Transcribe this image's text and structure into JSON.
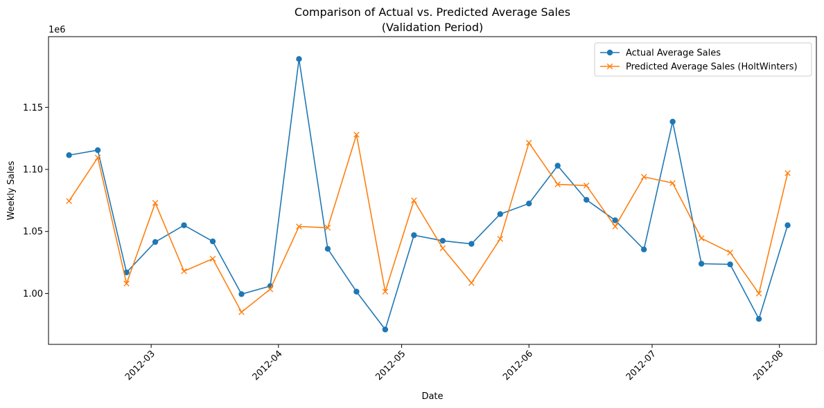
{
  "chart_data": {
    "type": "line",
    "title": "Comparison of Actual vs. Predicted Average Sales",
    "subtitle": "(Validation Period)",
    "xlabel": "Date",
    "ylabel": "Weekly Sales",
    "y_offset_label": "1e6",
    "x_tick_labels": [
      "2012-03",
      "2012-04",
      "2012-05",
      "2012-06",
      "2012-07",
      "2012-08"
    ],
    "x_ticks": [
      "2012-03-01",
      "2012-04-01",
      "2012-05-01",
      "2012-06-01",
      "2012-07-01",
      "2012-08-01"
    ],
    "y_tick_labels": [
      "1.00",
      "1.05",
      "1.10",
      "1.15"
    ],
    "y_ticks": [
      1.0,
      1.05,
      1.1,
      1.15
    ],
    "xlim": [
      "2012-02-05",
      "2012-08-10"
    ],
    "ylim": [
      0.959,
      1.207
    ],
    "grid": false,
    "legend_placement": "top-right",
    "x": [
      "2012-02-10",
      "2012-02-17",
      "2012-02-24",
      "2012-03-02",
      "2012-03-09",
      "2012-03-16",
      "2012-03-23",
      "2012-03-30",
      "2012-04-06",
      "2012-04-13",
      "2012-04-20",
      "2012-04-27",
      "2012-05-04",
      "2012-05-11",
      "2012-05-18",
      "2012-05-25",
      "2012-06-01",
      "2012-06-08",
      "2012-06-15",
      "2012-06-22",
      "2012-06-29",
      "2012-07-06",
      "2012-07-13",
      "2012-07-20",
      "2012-07-27",
      "2012-08-03"
    ],
    "series": [
      {
        "name": "Actual Average Sales",
        "color": "#1f77b4",
        "marker": "circle",
        "values": [
          1.1115,
          1.1155,
          1.017,
          1.0415,
          1.055,
          1.042,
          0.9995,
          1.006,
          1.189,
          1.036,
          1.0015,
          0.971,
          1.047,
          1.0425,
          1.04,
          1.064,
          1.0725,
          1.103,
          1.0755,
          1.059,
          1.0355,
          1.1385,
          1.024,
          1.0235,
          0.9795,
          1.055
        ]
      },
      {
        "name": "Predicted Average Sales (HoltWinters)",
        "color": "#ff7f0e",
        "marker": "x",
        "values": [
          1.0745,
          1.1095,
          1.008,
          1.073,
          1.018,
          1.028,
          0.985,
          1.0035,
          1.054,
          1.053,
          1.128,
          1.0015,
          1.075,
          1.0365,
          1.0085,
          1.044,
          1.1215,
          1.088,
          1.087,
          1.054,
          1.094,
          1.089,
          1.0445,
          1.033,
          1.0,
          1.097
        ]
      }
    ]
  }
}
